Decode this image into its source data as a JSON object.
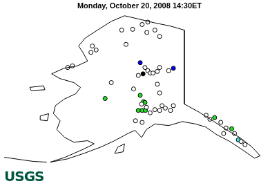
{
  "chart_data": {
    "type": "scatter",
    "title": "Monday, October 20, 2008 14:30ET",
    "xlim": [
      -179.3,
      -121.6
    ],
    "ylim": [
      49.3,
      71.0
    ],
    "grid": false,
    "tick_labels": false,
    "coastline": [
      [
        [
          -141.0,
          68.8
        ],
        [
          -141.0,
          59.5
        ],
        [
          -137.9,
          58.5
        ],
        [
          -135.0,
          57.4
        ],
        [
          -132.2,
          56.3
        ],
        [
          -129.3,
          55.3
        ],
        [
          -126.7,
          54.1
        ],
        [
          -125.0,
          53.0
        ],
        [
          -126.2,
          52.7
        ],
        [
          -128.6,
          53.7
        ],
        [
          -131.4,
          54.8
        ],
        [
          -134.3,
          55.7
        ],
        [
          -136.4,
          56.6
        ],
        [
          -138.6,
          57.0
        ],
        [
          -141.4,
          57.3
        ],
        [
          -144.3,
          56.8
        ],
        [
          -147.2,
          57.0
        ],
        [
          -149.0,
          56.3
        ],
        [
          -150.0,
          55.3
        ],
        [
          -151.4,
          56.2
        ],
        [
          -152.9,
          55.8
        ],
        [
          -155.7,
          54.9
        ],
        [
          -158.6,
          54.1
        ],
        [
          -162.2,
          53.3
        ],
        [
          -165.7,
          52.6
        ],
        [
          -169.3,
          52.2
        ],
        [
          -166.2,
          52.8
        ],
        [
          -162.4,
          53.8
        ],
        [
          -160.0,
          54.5
        ],
        [
          -161.4,
          54.9
        ],
        [
          -164.3,
          54.7
        ],
        [
          -166.2,
          55.3
        ],
        [
          -167.9,
          56.3
        ],
        [
          -167.2,
          57.4
        ],
        [
          -168.6,
          58.3
        ],
        [
          -168.2,
          59.3
        ],
        [
          -166.4,
          60.1
        ],
        [
          -163.9,
          60.8
        ],
        [
          -162.9,
          61.6
        ],
        [
          -164.3,
          62.2
        ],
        [
          -167.2,
          62.7
        ],
        [
          -169.0,
          63.3
        ],
        [
          -166.4,
          64.0
        ],
        [
          -163.6,
          64.3
        ],
        [
          -161.4,
          64.9
        ],
        [
          -162.4,
          66.0
        ],
        [
          -163.3,
          66.8
        ],
        [
          -161.9,
          67.8
        ],
        [
          -159.3,
          68.8
        ],
        [
          -156.4,
          69.9
        ],
        [
          -153.6,
          70.6
        ],
        [
          -150.7,
          70.2
        ],
        [
          -147.2,
          69.7
        ],
        [
          -143.9,
          69.3
        ]
      ],
      [
        [
          -155.0,
          54.1
        ],
        [
          -153.6,
          54.5
        ],
        [
          -153.9,
          53.5
        ],
        [
          -155.7,
          53.3
        ]
      ],
      [
        [
          -173.6,
          61.6
        ],
        [
          -170.7,
          61.8
        ],
        [
          -170.4,
          61.3
        ],
        [
          -173.3,
          61.2
        ]
      ],
      [
        [
          -171.4,
          58.0
        ],
        [
          -169.6,
          58.3
        ],
        [
          -169.9,
          57.4
        ],
        [
          -171.4,
          57.5
        ]
      ]
    ],
    "aleutians": [
      [
        -170.0,
        52.2
      ],
      [
        -172.9,
        52.3
      ],
      [
        -175.3,
        52.5
      ],
      [
        -177.6,
        52.7
      ],
      [
        -179.0,
        52.8
      ]
    ],
    "series": [
      {
        "color": "#ffffff",
        "x": [
          -160.4,
          -160.7,
          -159.6,
          -154.2,
          -151.9,
          -149.9,
          -148.7,
          -148.9,
          -147.2,
          -146.2,
          -165.6,
          -164.6,
          -149.3,
          -148.7,
          -148.2,
          -147.6,
          -146.7,
          -146.2,
          -144.3,
          -146.7,
          -146.2,
          -150.7,
          -156.4,
          -151.7,
          -150.0,
          -149.0,
          -148.2,
          -147.2,
          -146.2,
          -145.0,
          -143.9,
          -143.3,
          -151.3,
          -149.9,
          -136.4,
          -135.6,
          -133.3,
          -132.2,
          -132.7,
          -130.4,
          -129.0,
          -128.2,
          -153.3,
          -145.7
        ],
        "values": [
          66.8,
          66.0,
          66.3,
          68.8,
          68.9,
          69.5,
          69.8,
          68.5,
          68.8,
          68.0,
          64.1,
          64.3,
          64.1,
          63.7,
          63.4,
          63.4,
          63.6,
          64.1,
          63.7,
          62.0,
          60.9,
          63.1,
          62.2,
          61.4,
          59.5,
          59.1,
          58.4,
          58.8,
          58.7,
          59.0,
          58.7,
          59.3,
          57.4,
          57.2,
          58.1,
          57.6,
          57.2,
          56.5,
          55.8,
          55.8,
          54.8,
          54.4,
          67.0,
          59.3
        ]
      },
      {
        "color": "#22dd22",
        "x": [
          -157.7,
          -150.3,
          -149.6,
          -149.3,
          -150.7,
          -149.9,
          -149.2,
          -134.6,
          -131.0
        ],
        "values": [
          60.2,
          60.6,
          59.8,
          59.7,
          58.7,
          58.7,
          58.7,
          57.8,
          56.4
        ]
      },
      {
        "color": "#40e0e0",
        "x": [
          -129.6
        ],
        "values": [
          55.0
        ]
      },
      {
        "color": "#0000ff",
        "x": [
          -150.3,
          -143.3
        ],
        "values": [
          64.7,
          64.0
        ]
      },
      {
        "color": "#000000",
        "x": [
          -149.7
        ],
        "values": [
          63.3
        ]
      }
    ]
  },
  "logo": "USGS"
}
